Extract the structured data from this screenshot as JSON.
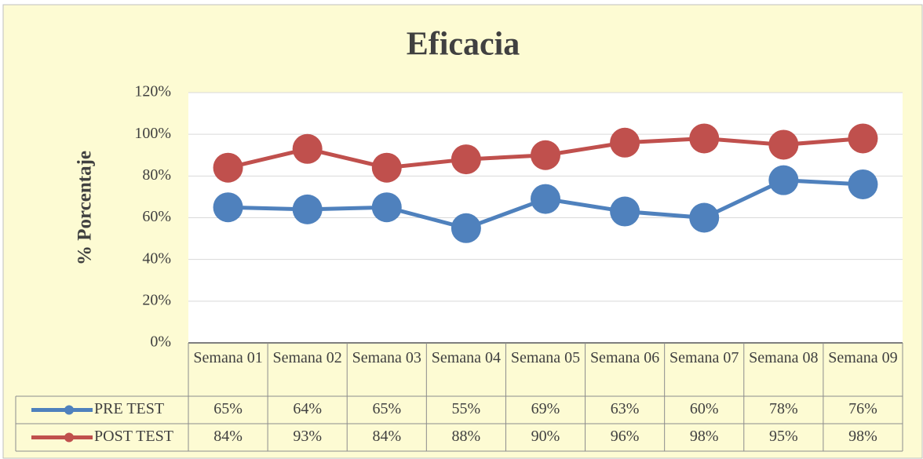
{
  "chart_data": {
    "type": "line",
    "title": "Eficacia",
    "y_label": "% Porcentaje",
    "categories": [
      "Semana 01",
      "Semana 02",
      "Semana 03",
      "Semana 04",
      "Semana 05",
      "Semana 06",
      "Semana 07",
      "Semana 08",
      "Semana 09"
    ],
    "series": [
      {
        "name": "PRE TEST",
        "color": "#4f81bd",
        "values": [
          65,
          64,
          65,
          55,
          69,
          63,
          60,
          78,
          76
        ],
        "value_labels": [
          "65%",
          "64%",
          "65%",
          "55%",
          "69%",
          "63%",
          "60%",
          "78%",
          "76%"
        ]
      },
      {
        "name": "POST TEST",
        "color": "#c0504d",
        "values": [
          84,
          93,
          84,
          88,
          90,
          96,
          98,
          95,
          98
        ],
        "value_labels": [
          "84%",
          "93%",
          "84%",
          "88%",
          "90%",
          "96%",
          "98%",
          "95%",
          "98%"
        ]
      }
    ],
    "ylim": [
      0,
      120
    ],
    "yticks": [
      {
        "value": 0,
        "label": "0%"
      },
      {
        "value": 20,
        "label": "20%"
      },
      {
        "value": 40,
        "label": "40%"
      },
      {
        "value": 60,
        "label": "60%"
      },
      {
        "value": 80,
        "label": "80%"
      },
      {
        "value": 100,
        "label": "100%"
      },
      {
        "value": 120,
        "label": "120%"
      }
    ],
    "grid": true
  }
}
